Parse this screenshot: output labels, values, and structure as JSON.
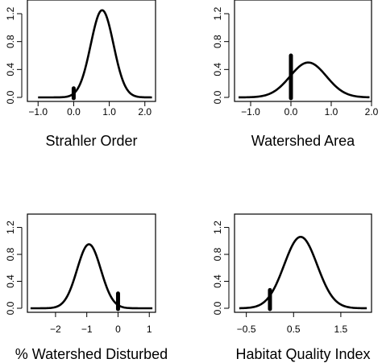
{
  "chart_data": [
    {
      "type": "line",
      "xlabel": "Strahler Order",
      "xlim": [
        -1.3,
        2.3
      ],
      "ylim": [
        0,
        1.35
      ],
      "x_ticks": [
        -1.0,
        0.0,
        1.0,
        2.0
      ],
      "x_tick_labels": [
        "−1.0",
        "0.0",
        "1.0",
        "2.0"
      ],
      "y_ticks": [
        0.0,
        0.4,
        0.8,
        1.2
      ],
      "y_tick_labels": [
        "0.0",
        "0.4",
        "0.8",
        "1.2"
      ],
      "curve": {
        "shape": "gaussian",
        "mean": 0.8,
        "sd": 0.32,
        "peak": 1.25,
        "x_range": [
          -1.0,
          2.2
        ]
      },
      "bar": {
        "x": 0.0,
        "y_from": 0.0,
        "y_to": 0.13
      }
    },
    {
      "type": "line",
      "xlabel": "Watershed Area",
      "xlim": [
        -1.4,
        2.0
      ],
      "ylim": [
        0,
        1.35
      ],
      "x_ticks": [
        -1.0,
        0.0,
        1.0,
        2.0
      ],
      "x_tick_labels": [
        "−1.0",
        "0.0",
        "1.0",
        "2.0"
      ],
      "y_ticks": [
        0.0,
        0.4,
        0.8,
        1.2
      ],
      "y_tick_labels": [
        "0.0",
        "0.4",
        "0.8",
        "1.2"
      ],
      "curve": {
        "shape": "gaussian",
        "mean": 0.43,
        "sd": 0.45,
        "peak": 0.5,
        "x_range": [
          -1.3,
          1.95
        ]
      },
      "bar": {
        "x": 0.0,
        "y_from": 0.0,
        "y_to": 0.6
      }
    },
    {
      "type": "line",
      "xlabel": "% Watershed Disturbed",
      "xlim": [
        -2.9,
        1.2
      ],
      "ylim": [
        0,
        1.35
      ],
      "x_ticks": [
        -2,
        -1,
        0,
        1
      ],
      "x_tick_labels": [
        "−2",
        "−1",
        "0",
        "1"
      ],
      "y_ticks": [
        0.0,
        0.4,
        0.8,
        1.2
      ],
      "y_tick_labels": [
        "0.0",
        "0.4",
        "0.8",
        "1.2"
      ],
      "curve": {
        "shape": "gaussian",
        "mean": -0.93,
        "sd": 0.38,
        "peak": 0.95,
        "x_range": [
          -2.8,
          1.1
        ]
      },
      "bar": {
        "x": 0.0,
        "y_from": 0.0,
        "y_to": 0.22
      }
    },
    {
      "type": "line",
      "xlabel": "Habitat Quality Index",
      "xlim": [
        -0.75,
        2.15
      ],
      "ylim": [
        0,
        1.35
      ],
      "x_ticks": [
        -0.5,
        0.5,
        1.5
      ],
      "x_tick_labels": [
        "−0.5",
        "0.5",
        "1.5"
      ],
      "y_ticks": [
        0.0,
        0.4,
        0.8,
        1.2
      ],
      "y_tick_labels": [
        "0.0",
        "0.4",
        "0.8",
        "1.2"
      ],
      "curve": {
        "shape": "gaussian",
        "mean": 0.65,
        "sd": 0.35,
        "peak": 1.06,
        "x_range": [
          -0.65,
          2.05
        ]
      },
      "bar": {
        "x": 0.0,
        "y_from": 0.0,
        "y_to": 0.27
      }
    }
  ]
}
